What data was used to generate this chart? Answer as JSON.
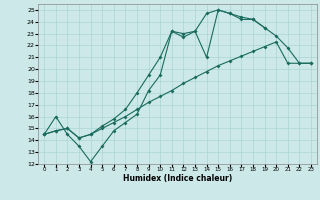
{
  "xlabel": "Humidex (Indice chaleur)",
  "xlim": [
    -0.5,
    23.5
  ],
  "ylim": [
    12,
    25.5
  ],
  "xticks": [
    0,
    1,
    2,
    3,
    4,
    5,
    6,
    7,
    8,
    9,
    10,
    11,
    12,
    13,
    14,
    15,
    16,
    17,
    18,
    19,
    20,
    21,
    22,
    23
  ],
  "yticks": [
    12,
    13,
    14,
    15,
    16,
    17,
    18,
    19,
    20,
    21,
    22,
    23,
    24,
    25
  ],
  "bg_color": "#cce8e8",
  "grid_color": "#aad4d4",
  "line_color": "#1a6b5e",
  "line1_x": [
    0,
    1,
    2,
    3,
    4,
    5,
    6,
    7,
    8,
    9,
    10,
    11,
    12,
    13,
    14,
    15,
    16,
    17,
    18,
    19
  ],
  "line1_y": [
    14.5,
    16.0,
    14.5,
    13.5,
    12.2,
    13.5,
    14.8,
    15.5,
    16.2,
    18.2,
    19.5,
    23.2,
    22.7,
    23.2,
    21.0,
    25.0,
    24.7,
    24.2,
    24.2,
    23.5
  ],
  "line2_x": [
    0,
    1,
    2,
    3,
    4,
    5,
    6,
    7,
    8,
    9,
    10,
    11,
    12,
    13,
    14,
    15,
    16,
    17,
    18,
    19,
    20,
    21,
    22,
    23
  ],
  "line2_y": [
    14.5,
    14.8,
    15.0,
    14.2,
    14.5,
    15.0,
    15.5,
    16.0,
    16.6,
    17.2,
    17.7,
    18.2,
    18.8,
    19.3,
    19.8,
    20.3,
    20.7,
    21.1,
    21.5,
    21.9,
    22.3,
    20.5,
    20.5,
    20.5
  ],
  "line3_x": [
    0,
    1,
    2,
    3,
    4,
    5,
    6,
    7,
    8,
    9,
    10,
    11,
    12,
    13,
    14,
    15,
    16,
    17,
    18,
    19,
    20,
    21,
    22,
    23
  ],
  "line3_y": [
    14.5,
    14.8,
    15.0,
    14.2,
    14.5,
    15.2,
    15.8,
    16.6,
    18.0,
    19.5,
    21.0,
    23.2,
    23.0,
    23.2,
    24.7,
    25.0,
    24.7,
    24.4,
    24.2,
    23.5,
    22.8,
    21.8,
    20.5,
    20.5
  ]
}
